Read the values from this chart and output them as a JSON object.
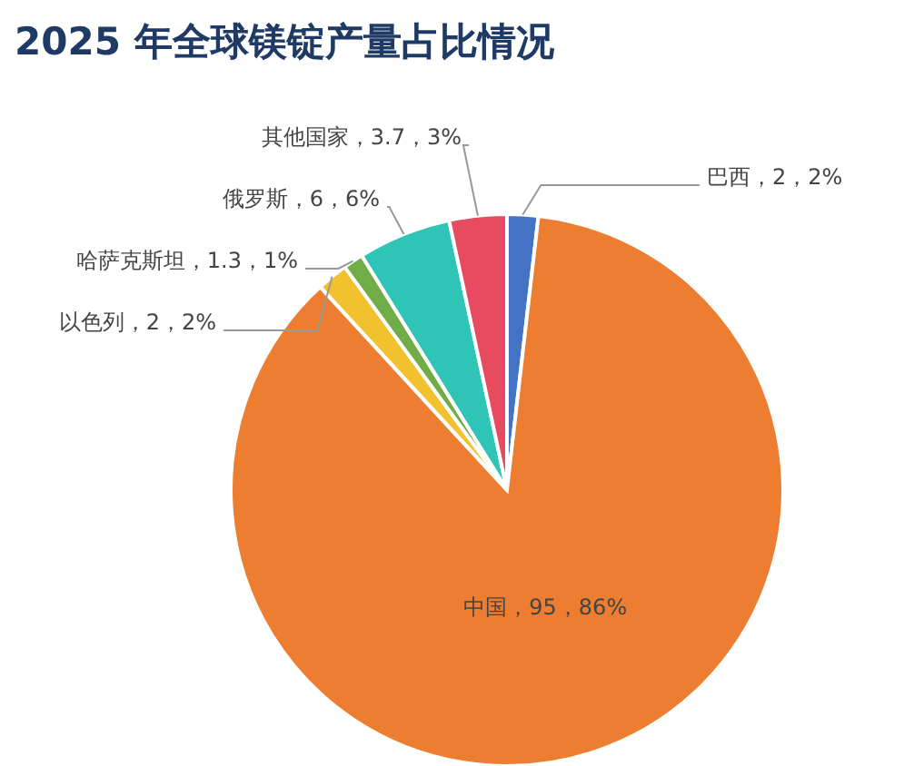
{
  "chart_data": {
    "type": "pie",
    "title": "2025 年全球镁锭产量占比情况",
    "categories": [
      "巴西",
      "中国",
      "以色列",
      "哈萨克斯坦",
      "俄罗斯",
      "其他国家"
    ],
    "values": [
      2,
      95,
      2,
      1.3,
      6,
      3.7
    ],
    "colors": [
      "#4472c4",
      "#ed7d31",
      "#f2c12e",
      "#70ad47",
      "#2ec4b6",
      "#e84a5f"
    ],
    "value_labels": [
      "2，2%",
      "95，86%",
      "2，2%",
      "1.3，1%",
      "6，6%",
      "3.7，3%"
    ]
  }
}
